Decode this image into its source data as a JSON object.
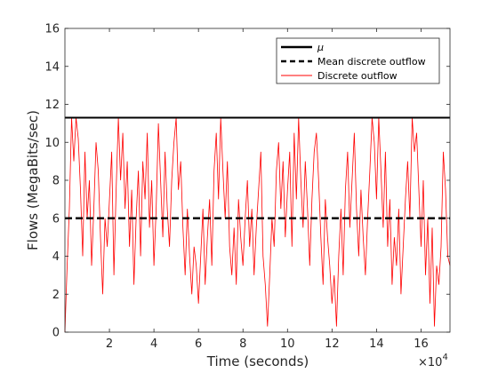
{
  "chart_data": {
    "type": "line",
    "title": "",
    "xlabel": "Time (seconds)",
    "ylabel": "Flows (MegaBits/sec)",
    "xlim": [
      0,
      17.3
    ],
    "ylim": [
      0,
      16
    ],
    "x_scale_exponent_label": "×10",
    "x_scale_exponent_power": "4",
    "x_ticks": [
      2,
      4,
      6,
      8,
      10,
      12,
      14,
      16
    ],
    "x_tick_labels": [
      "2",
      "4",
      "6",
      "8",
      "10",
      "12",
      "14",
      "16"
    ],
    "y_ticks": [
      0,
      2,
      4,
      6,
      8,
      10,
      12,
      14,
      16
    ],
    "y_tick_labels": [
      "0",
      "2",
      "4",
      "6",
      "8",
      "10",
      "12",
      "14",
      "16"
    ],
    "grid": false,
    "legend_position": "top-right",
    "series": [
      {
        "name": "μ",
        "style": "solid",
        "color": "#000000",
        "constant": 11.3
      },
      {
        "name": "Mean discrete outflow",
        "style": "dashed",
        "color": "#000000",
        "constant": 6.0
      },
      {
        "name": "Discrete outflow",
        "style": "solid",
        "color": "#ff0000",
        "clip_max": 11.3,
        "x": [
          0.0,
          0.1,
          0.2,
          0.3,
          0.4,
          0.5,
          0.6,
          0.7,
          0.8,
          0.9,
          1.0,
          1.1,
          1.2,
          1.3,
          1.4,
          1.5,
          1.6,
          1.7,
          1.8,
          1.9,
          2.0,
          2.1,
          2.2,
          2.3,
          2.4,
          2.5,
          2.6,
          2.7,
          2.8,
          2.9,
          3.0,
          3.1,
          3.2,
          3.3,
          3.4,
          3.5,
          3.6,
          3.7,
          3.8,
          3.9,
          4.0,
          4.1,
          4.2,
          4.3,
          4.4,
          4.5,
          4.6,
          4.7,
          4.8,
          4.9,
          5.0,
          5.1,
          5.2,
          5.3,
          5.4,
          5.5,
          5.6,
          5.7,
          5.8,
          5.9,
          6.0,
          6.1,
          6.2,
          6.3,
          6.4,
          6.5,
          6.6,
          6.7,
          6.8,
          6.9,
          7.0,
          7.1,
          7.2,
          7.3,
          7.4,
          7.5,
          7.6,
          7.7,
          7.8,
          7.9,
          8.0,
          8.1,
          8.2,
          8.3,
          8.4,
          8.5,
          8.6,
          8.7,
          8.8,
          8.9,
          9.0,
          9.1,
          9.2,
          9.3,
          9.4,
          9.5,
          9.6,
          9.7,
          9.8,
          9.9,
          10.0,
          10.1,
          10.2,
          10.3,
          10.4,
          10.5,
          10.6,
          10.7,
          10.8,
          10.9,
          11.0,
          11.1,
          11.2,
          11.3,
          11.4,
          11.5,
          11.6,
          11.7,
          11.8,
          11.9,
          12.0,
          12.1,
          12.2,
          12.3,
          12.4,
          12.5,
          12.6,
          12.7,
          12.8,
          12.9,
          13.0,
          13.1,
          13.2,
          13.3,
          13.4,
          13.5,
          13.6,
          13.7,
          13.8,
          13.9,
          14.0,
          14.1,
          14.2,
          14.3,
          14.4,
          14.5,
          14.6,
          14.7,
          14.8,
          14.9,
          15.0,
          15.1,
          15.2,
          15.3,
          15.4,
          15.5,
          15.6,
          15.7,
          15.8,
          15.9,
          16.0,
          16.1,
          16.2,
          16.3,
          16.4,
          16.5,
          16.6,
          16.7,
          16.8,
          16.9,
          17.0,
          17.1,
          17.2,
          17.3
        ],
        "y": [
          0.0,
          3.5,
          6.5,
          11.3,
          9.0,
          11.3,
          10.2,
          7.5,
          4.0,
          9.5,
          6.0,
          8.0,
          3.5,
          6.5,
          10.0,
          8.5,
          5.0,
          2.0,
          6.0,
          4.5,
          7.0,
          9.5,
          3.0,
          7.5,
          11.3,
          8.0,
          10.5,
          6.5,
          9.0,
          4.5,
          7.5,
          2.5,
          6.0,
          8.5,
          4.0,
          9.0,
          7.0,
          10.5,
          5.5,
          8.0,
          3.5,
          6.5,
          11.0,
          8.0,
          5.0,
          9.5,
          6.5,
          4.5,
          8.0,
          10.0,
          11.3,
          7.5,
          9.0,
          5.5,
          3.0,
          6.5,
          4.0,
          2.0,
          4.5,
          3.5,
          1.5,
          4.0,
          6.5,
          2.5,
          5.0,
          7.0,
          3.5,
          8.5,
          10.5,
          7.0,
          11.3,
          8.5,
          6.0,
          9.0,
          4.5,
          3.0,
          5.5,
          2.5,
          7.0,
          5.0,
          3.5,
          6.0,
          8.0,
          4.5,
          6.5,
          3.0,
          5.5,
          7.5,
          9.5,
          4.0,
          2.5,
          0.3,
          3.0,
          6.0,
          4.5,
          8.5,
          10.0,
          6.5,
          9.0,
          5.0,
          7.5,
          9.5,
          4.5,
          10.5,
          7.0,
          11.3,
          8.0,
          5.5,
          9.0,
          6.5,
          3.5,
          7.0,
          9.5,
          10.5,
          8.0,
          5.0,
          2.5,
          7.0,
          5.0,
          3.5,
          1.5,
          3.0,
          0.3,
          4.0,
          6.5,
          3.0,
          7.5,
          9.5,
          5.5,
          8.0,
          10.5,
          6.5,
          4.0,
          7.5,
          5.0,
          3.0,
          6.0,
          8.5,
          11.3,
          10.0,
          7.0,
          11.3,
          8.5,
          5.5,
          9.5,
          4.5,
          7.0,
          2.5,
          5.0,
          3.5,
          6.5,
          2.0,
          4.5,
          7.0,
          9.0,
          6.0,
          11.3,
          9.5,
          10.5,
          7.5,
          4.5,
          8.0,
          3.0,
          6.0,
          1.5,
          5.5,
          0.3,
          3.5,
          2.5,
          4.5,
          9.5,
          7.5,
          4.0,
          3.5
        ]
      }
    ]
  }
}
